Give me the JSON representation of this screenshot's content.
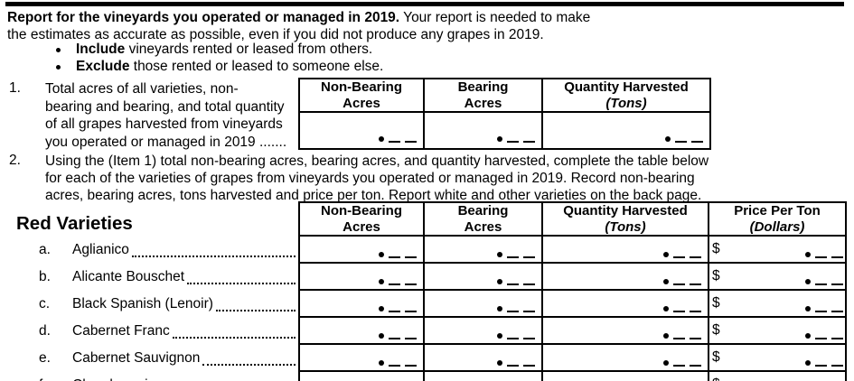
{
  "intro": {
    "line1_bold": "Report for the vineyards you operated or managed in 2019.",
    "line1_rest": " Your report is needed to make",
    "line2": "the estimates as accurate as possible, even if you did not produce any grapes in 2019.",
    "bullets": [
      {
        "bold": "Include",
        "rest": " vineyards rented or leased from others."
      },
      {
        "bold": "Exclude",
        "rest": " those rented or leased to someone else."
      }
    ]
  },
  "item1": {
    "number": "1.",
    "lines": [
      "Total acres of all varieties, non-",
      "bearing and bearing, and total quantity",
      "of all grapes harvested from vineyards",
      "you operated or managed in 2019 ......."
    ]
  },
  "item2": {
    "number": "2.",
    "lines": [
      "Using the (Item 1) total non-bearing acres, bearing acres, and quantity harvested, complete the table below",
      "for each of the varieties of grapes from vineyards you operated or managed in 2019. Record non-bearing",
      "acres, bearing acres, tons harvested and price per ton.  Report white and other varieties on the back page."
    ]
  },
  "table1": {
    "columns": [
      {
        "line1": "Non-Bearing",
        "line2": "Acres"
      },
      {
        "line1": "Bearing",
        "line2": "Acres"
      },
      {
        "line1": "Quantity Harvested",
        "line2": "(Tons)"
      }
    ]
  },
  "red_varieties": {
    "section_title": "Red Varieties",
    "columns": [
      {
        "line1": "Non-Bearing",
        "line2": "Acres"
      },
      {
        "line1": "Bearing",
        "line2": "Acres"
      },
      {
        "line1": "Quantity Harvested",
        "line2": "(Tons)"
      },
      {
        "line1": "Price Per Ton",
        "line2": "(Dollars)"
      }
    ],
    "currency_symbol": "$",
    "rows": [
      {
        "letter": "a.",
        "name": "Aglianico"
      },
      {
        "letter": "b.",
        "name": "Alicante Bouschet"
      },
      {
        "letter": "c.",
        "name": "Black Spanish (Lenoir)"
      },
      {
        "letter": "d.",
        "name": "Cabernet Franc"
      },
      {
        "letter": "e.",
        "name": "Cabernet Sauvignon"
      },
      {
        "letter": "f.",
        "name": "Chambourcin"
      }
    ]
  }
}
